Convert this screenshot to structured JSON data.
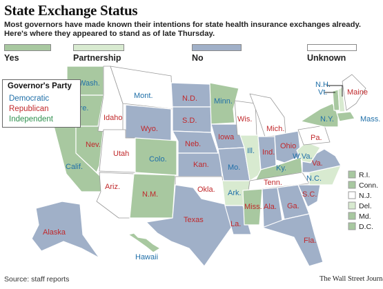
{
  "header": {
    "title": "State Exchange Status",
    "subtitle": "Most governors have made known their intentions for state health insurance exchanges already. Here's where they appeared to stand as of late Thursday."
  },
  "legend": [
    {
      "key": "yes",
      "label": "Yes",
      "color": "#a8c8a0"
    },
    {
      "key": "partnership",
      "label": "Partnership",
      "color": "#d8ead0"
    },
    {
      "key": "no",
      "label": "No",
      "color": "#a0b0c8"
    },
    {
      "key": "unknown",
      "label": "Unknown",
      "color": "#ffffff"
    }
  ],
  "party_key": {
    "title": "Governor's Party",
    "items": [
      {
        "label": "Democratic",
        "color": "#1f6fa8"
      },
      {
        "label": "Republican",
        "color": "#c0282b"
      },
      {
        "label": "Independent",
        "color": "#2f8f4e"
      }
    ]
  },
  "states": [
    {
      "label": "Wash.",
      "status": "yes",
      "party": "Democratic"
    },
    {
      "label": "Ore.",
      "status": "yes",
      "party": "Democratic"
    },
    {
      "label": "Calif.",
      "status": "yes",
      "party": "Democratic"
    },
    {
      "label": "Nev.",
      "status": "yes",
      "party": "Republican"
    },
    {
      "label": "Idaho",
      "status": "unknown",
      "party": "Republican"
    },
    {
      "label": "Mont.",
      "status": "unknown",
      "party": "Democratic"
    },
    {
      "label": "Wyo.",
      "status": "no",
      "party": "Republican"
    },
    {
      "label": "Utah",
      "status": "unknown",
      "party": "Republican"
    },
    {
      "label": "Colo.",
      "status": "yes",
      "party": "Democratic"
    },
    {
      "label": "Ariz.",
      "status": "unknown",
      "party": "Republican"
    },
    {
      "label": "N.M.",
      "status": "yes",
      "party": "Republican"
    },
    {
      "label": "N.D.",
      "status": "no",
      "party": "Republican"
    },
    {
      "label": "S.D.",
      "status": "no",
      "party": "Republican"
    },
    {
      "label": "Neb.",
      "status": "no",
      "party": "Republican"
    },
    {
      "label": "Kan.",
      "status": "no",
      "party": "Republican"
    },
    {
      "label": "Okla.",
      "status": "unknown",
      "party": "Republican"
    },
    {
      "label": "Texas",
      "status": "no",
      "party": "Republican"
    },
    {
      "label": "Minn.",
      "status": "yes",
      "party": "Democratic"
    },
    {
      "label": "Iowa",
      "status": "no",
      "party": "Republican"
    },
    {
      "label": "Mo.",
      "status": "no",
      "party": "Democratic"
    },
    {
      "label": "Ark.",
      "status": "partnership",
      "party": "Democratic"
    },
    {
      "label": "La.",
      "status": "no",
      "party": "Republican"
    },
    {
      "label": "Wis.",
      "status": "unknown",
      "party": "Republican"
    },
    {
      "label": "Ill.",
      "status": "partnership",
      "party": "Democratic"
    },
    {
      "label": "Mich.",
      "status": "unknown",
      "party": "Republican"
    },
    {
      "label": "Ind.",
      "status": "no",
      "party": "Republican"
    },
    {
      "label": "Ohio",
      "status": "no",
      "party": "Republican"
    },
    {
      "label": "Ky.",
      "status": "yes",
      "party": "Democratic"
    },
    {
      "label": "Tenn.",
      "status": "unknown",
      "party": "Republican"
    },
    {
      "label": "Miss.",
      "status": "yes",
      "party": "Republican"
    },
    {
      "label": "Ala.",
      "status": "no",
      "party": "Republican"
    },
    {
      "label": "Ga.",
      "status": "no",
      "party": "Republican"
    },
    {
      "label": "Fla.",
      "status": "no",
      "party": "Republican"
    },
    {
      "label": "S.C.",
      "status": "no",
      "party": "Republican"
    },
    {
      "label": "N.C.",
      "status": "partnership",
      "party": "Democratic"
    },
    {
      "label": "Va.",
      "status": "no",
      "party": "Republican"
    },
    {
      "label": "W.Va.",
      "status": "partnership",
      "party": "Democratic"
    },
    {
      "label": "Pa.",
      "status": "unknown",
      "party": "Republican"
    },
    {
      "label": "N.Y.",
      "status": "yes",
      "party": "Democratic"
    },
    {
      "label": "Vt.",
      "status": "yes",
      "party": "Democratic"
    },
    {
      "label": "N.H.",
      "status": "partnership",
      "party": "Democratic"
    },
    {
      "label": "Maine",
      "status": "unknown",
      "party": "Republican"
    },
    {
      "label": "Mass.",
      "status": "yes",
      "party": "Democratic"
    },
    {
      "label": "Alaska",
      "status": "no",
      "party": "Republican"
    },
    {
      "label": "Hawaii",
      "status": "yes",
      "party": "Democratic"
    }
  ],
  "small_states": [
    {
      "label": "R.I.",
      "status": "yes"
    },
    {
      "label": "Conn.",
      "status": "yes"
    },
    {
      "label": "N.J.",
      "status": "unknown"
    },
    {
      "label": "Del.",
      "status": "partnership"
    },
    {
      "label": "Md.",
      "status": "yes"
    },
    {
      "label": "D.C.",
      "status": "yes"
    }
  ],
  "footer": {
    "source": "Source: staff reports",
    "credit": "The Wall Street Journal"
  }
}
